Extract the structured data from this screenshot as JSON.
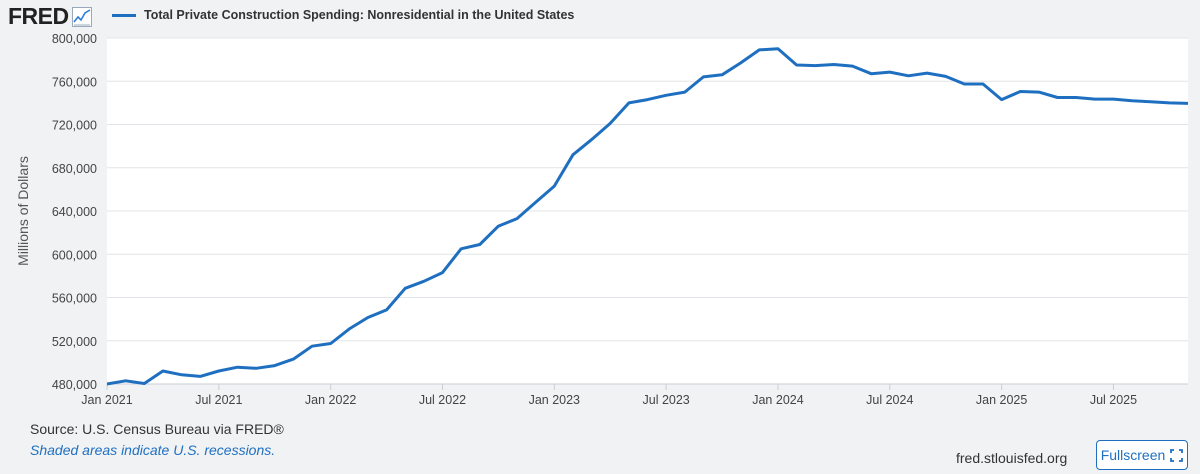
{
  "brand": {
    "logo_text": "FRED",
    "logo_icon": "trend-line-icon"
  },
  "legend": {
    "label": "Total Private Construction Spending: Nonresidential in the United States",
    "color": "#1f6fc1"
  },
  "chart_data": {
    "type": "line",
    "title": "",
    "xlabel": "",
    "ylabel": "Millions of Dollars",
    "ylim": [
      480000,
      800000
    ],
    "yticks": [
      480000,
      520000,
      560000,
      600000,
      640000,
      680000,
      720000,
      760000,
      800000
    ],
    "ytick_labels": [
      "480,000",
      "520,000",
      "560,000",
      "600,000",
      "640,000",
      "680,000",
      "720,000",
      "760,000",
      "800,000"
    ],
    "xlim": [
      "2021-01",
      "2025-11"
    ],
    "xticks": [
      "2021-01",
      "2021-07",
      "2022-01",
      "2022-07",
      "2023-01",
      "2023-07",
      "2024-01",
      "2024-07",
      "2025-01",
      "2025-07"
    ],
    "xtick_labels": [
      "Jan 2021",
      "Jul 2021",
      "Jan 2022",
      "Jul 2022",
      "Jan 2023",
      "Jul 2023",
      "Jan 2024",
      "Jul 2024",
      "Jan 2025",
      "Jul 2025"
    ],
    "grid": true,
    "series": [
      {
        "name": "Total Private Construction Spending: Nonresidential in the United States",
        "color": "#1f6fc1",
        "x": [
          "2021-01",
          "2021-02",
          "2021-03",
          "2021-04",
          "2021-05",
          "2021-06",
          "2021-07",
          "2021-08",
          "2021-09",
          "2021-10",
          "2021-11",
          "2021-12",
          "2022-01",
          "2022-02",
          "2022-03",
          "2022-04",
          "2022-05",
          "2022-06",
          "2022-07",
          "2022-08",
          "2022-09",
          "2022-10",
          "2022-11",
          "2022-12",
          "2023-01",
          "2023-02",
          "2023-03",
          "2023-04",
          "2023-05",
          "2023-06",
          "2023-07",
          "2023-08",
          "2023-09",
          "2023-10",
          "2023-11",
          "2023-12",
          "2024-01",
          "2024-02",
          "2024-03",
          "2024-04",
          "2024-05",
          "2024-06",
          "2024-07",
          "2024-08",
          "2024-09",
          "2024-10",
          "2024-11",
          "2024-12",
          "2025-01",
          "2025-02",
          "2025-03",
          "2025-04",
          "2025-05",
          "2025-06",
          "2025-07",
          "2025-08",
          "2025-09",
          "2025-10",
          "2025-11"
        ],
        "values": [
          480000,
          483000,
          480500,
          492000,
          488500,
          487000,
          492000,
          495500,
          494500,
          497000,
          503000,
          515000,
          517500,
          531000,
          541500,
          548500,
          568500,
          575000,
          583000,
          605000,
          609000,
          626000,
          633000,
          648000,
          663000,
          692000,
          706000,
          721000,
          740000,
          743000,
          747000,
          750000,
          764000,
          766000,
          777000,
          789000,
          790000,
          775000,
          774500,
          775500,
          774000,
          767000,
          768500,
          765000,
          767500,
          764500,
          757500,
          757500,
          743000,
          750500,
          750000,
          745000,
          745000,
          743500,
          743500,
          742000,
          741000,
          740000,
          739500
        ]
      }
    ]
  },
  "footer": {
    "source": "Source: U.S. Census Bureau via FRED®",
    "note": "Shaded areas indicate U.S. recessions.",
    "site": "fred.stlouisfed.org",
    "fullscreen_label": "Fullscreen"
  }
}
